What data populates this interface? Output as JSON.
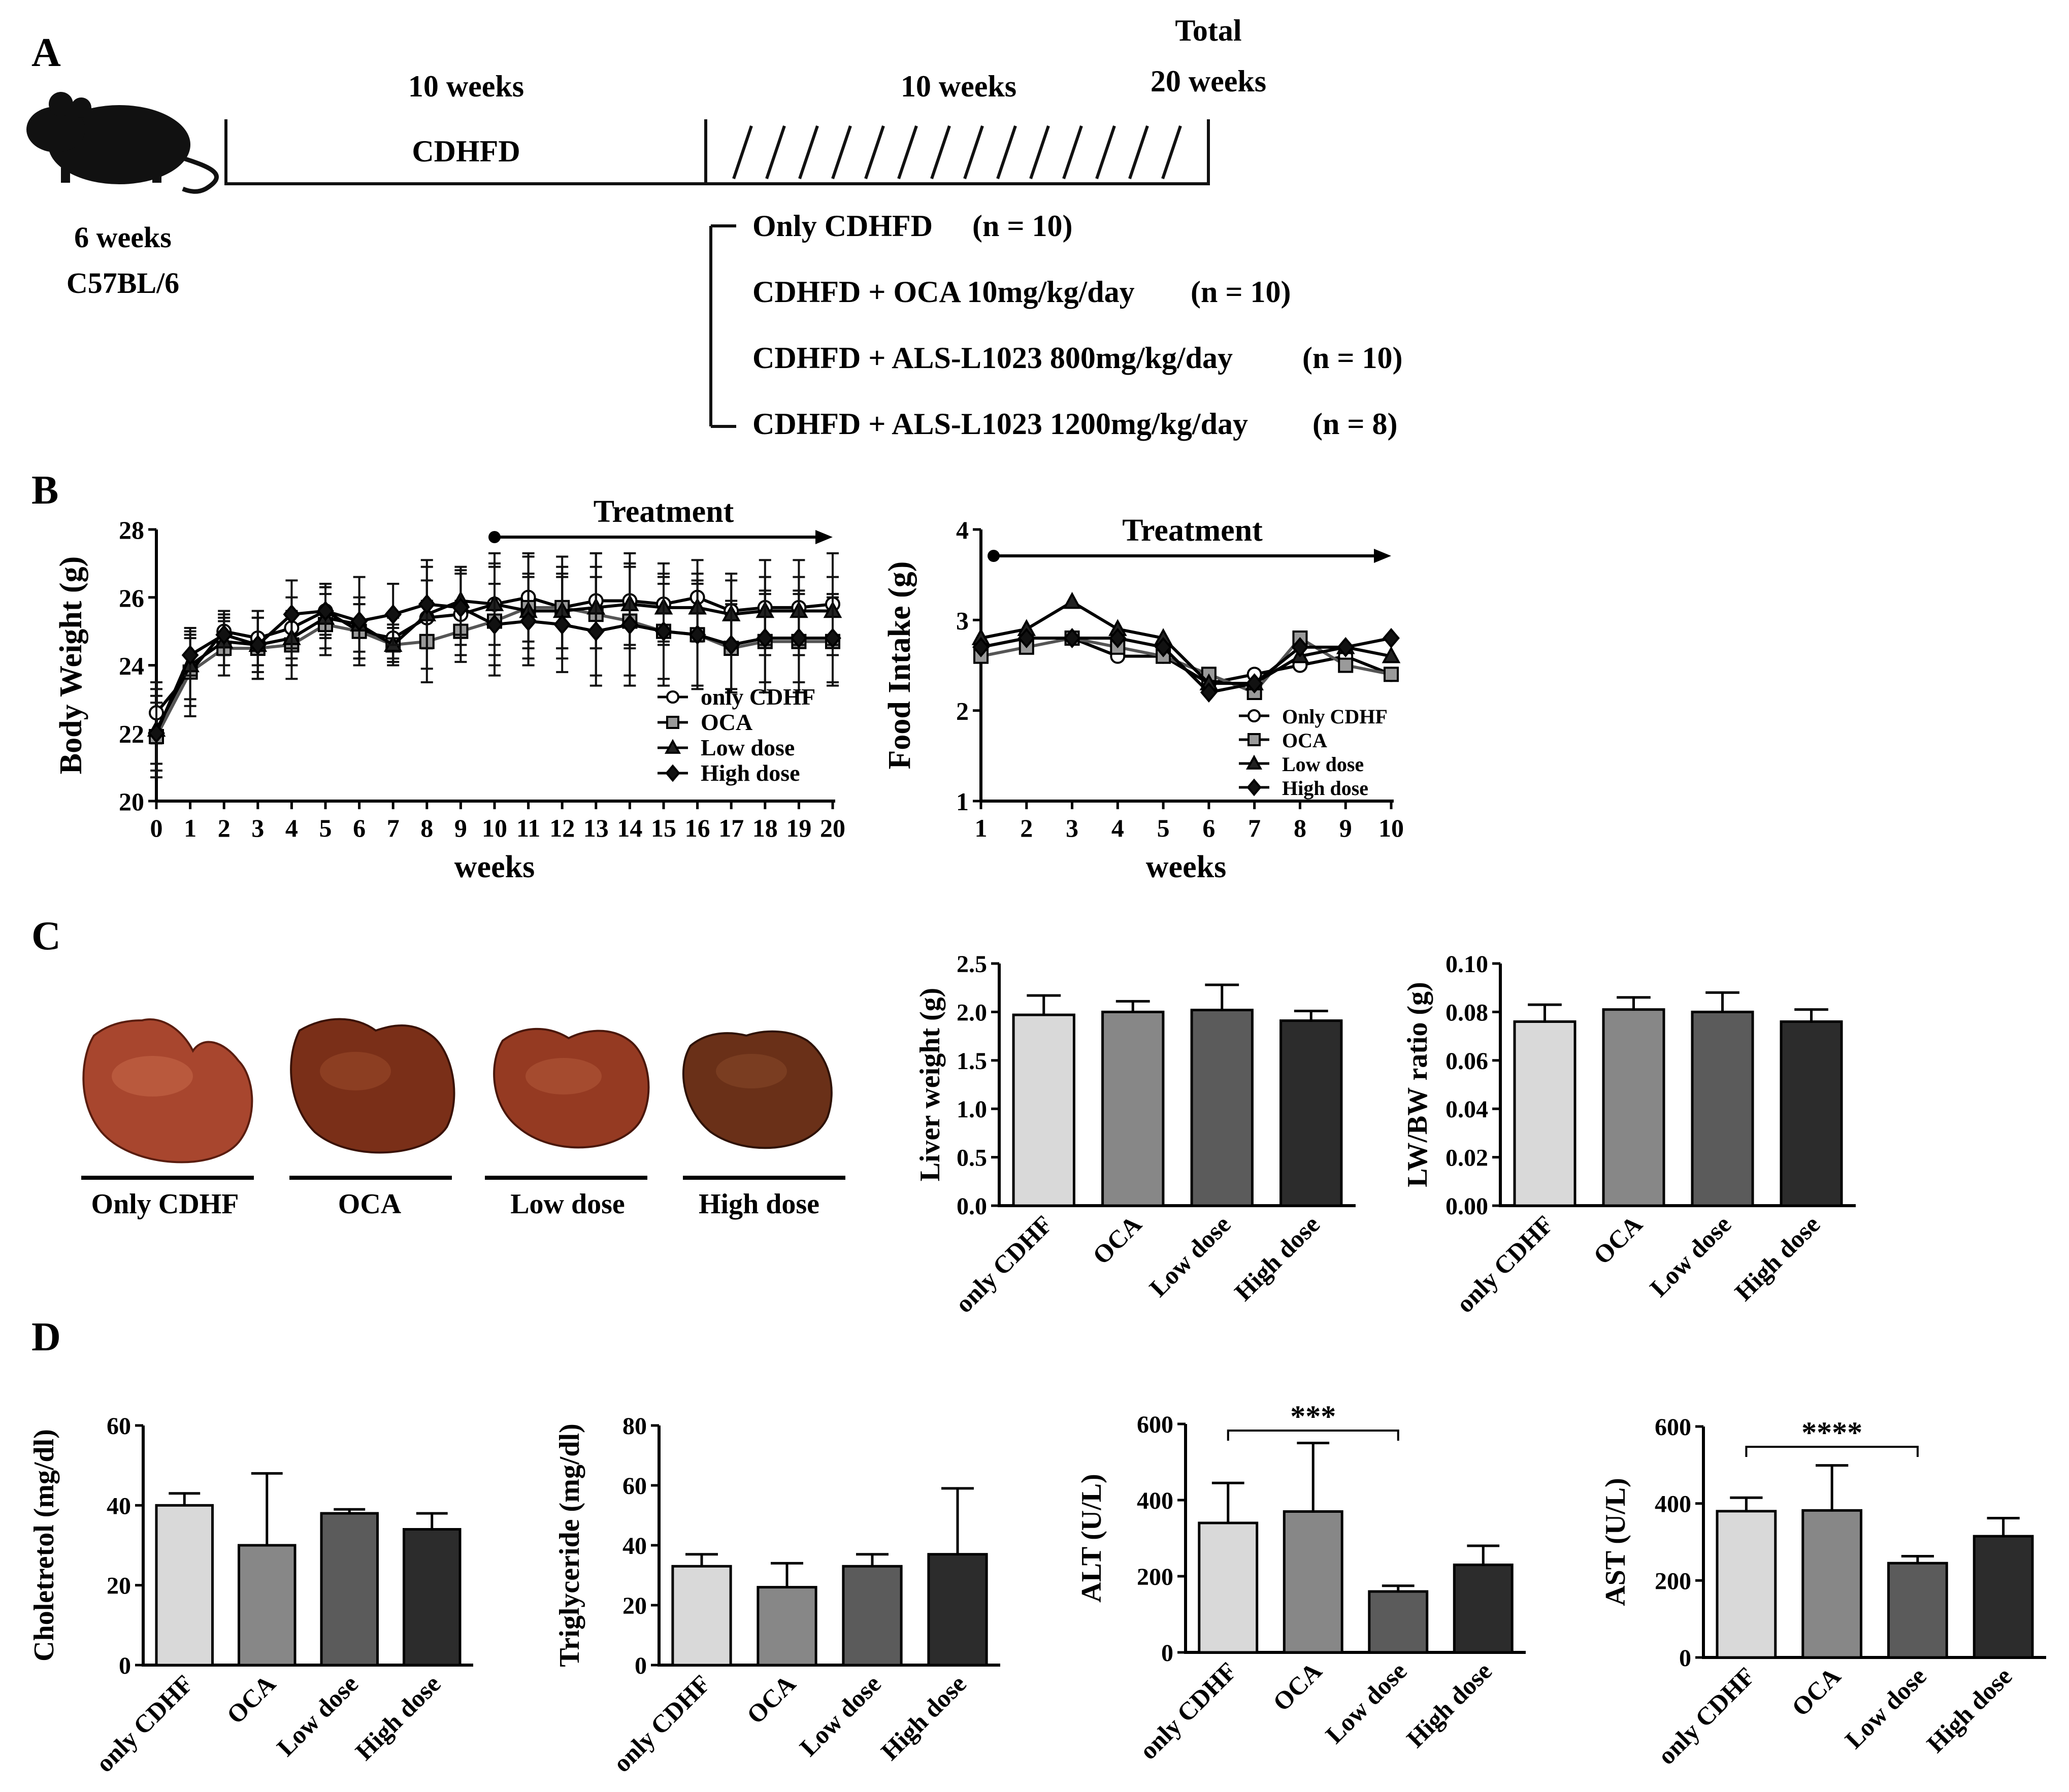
{
  "panel_labels": [
    "A",
    "B",
    "C",
    "D"
  ],
  "colors": {
    "only": "#d9d9d9",
    "oca": "#878787",
    "low": "#5b5b5b",
    "high": "#2c2c2c"
  },
  "panelA": {
    "period1": "10 weeks",
    "diet": "CDHFD",
    "period2": "10 weeks",
    "total_line1": "Total",
    "total_line2": "20 weeks",
    "mouse_age": "6 weeks",
    "mouse_strain": "C57BL/6",
    "groups": [
      {
        "label": "Only CDHFD",
        "n": "(n = 10)"
      },
      {
        "label": "CDHFD + OCA 10mg/kg/day",
        "n": "(n = 10)"
      },
      {
        "label": "CDHFD + ALS-L1023 800mg/kg/day",
        "n": "(n = 10)"
      },
      {
        "label": "CDHFD + ALS-L1023 1200mg/kg/day",
        "n": "(n = 8)"
      }
    ]
  },
  "panelC_images": {
    "labels": [
      "Only CDHF",
      "OCA",
      "Low dose",
      "High dose"
    ],
    "colors": [
      "#a8462e",
      "#7a2f18",
      "#953a22",
      "#6a3018"
    ]
  },
  "chart_data": [
    {
      "id": "body_weight",
      "type": "line",
      "title": "Treatment",
      "xlabel": "weeks",
      "ylabel": "Body Weight (g)",
      "x": [
        0,
        1,
        2,
        3,
        4,
        5,
        6,
        7,
        8,
        9,
        10,
        11,
        12,
        13,
        14,
        15,
        16,
        17,
        18,
        19,
        20
      ],
      "ylim": [
        20,
        28
      ],
      "yticks": [
        20,
        22,
        24,
        26,
        28
      ],
      "treatment_range": [
        10,
        20
      ],
      "legend": [
        "only CDHF",
        "OCA",
        "Low dose",
        "High dose"
      ],
      "series": [
        {
          "name": "only CDHF",
          "marker": "circle",
          "values": [
            22.6,
            23.8,
            25.0,
            24.8,
            25.1,
            25.6,
            25.0,
            24.8,
            25.4,
            25.5,
            25.8,
            26.0,
            25.7,
            25.9,
            25.9,
            25.8,
            26.0,
            25.6,
            25.7,
            25.7,
            25.8
          ],
          "err": [
            0.9,
            1.0,
            0.6,
            0.8,
            0.9,
            0.7,
            0.8,
            0.6,
            1.5,
            1.2,
            1.5,
            1.3,
            1.2,
            1.4,
            1.4,
            1.2,
            1.1,
            1.1,
            1.4,
            1.4,
            1.5
          ]
        },
        {
          "name": "OCA",
          "marker": "square",
          "values": [
            21.9,
            23.8,
            24.5,
            24.5,
            24.6,
            25.2,
            25.0,
            24.6,
            24.7,
            25.0,
            25.3,
            25.7,
            25.7,
            25.5,
            25.3,
            25.0,
            24.9,
            24.5,
            24.7,
            24.7,
            24.7
          ],
          "err": [
            1.0,
            1.3,
            0.8,
            0.9,
            1.0,
            0.9,
            0.8,
            0.5,
            1.2,
            0.9,
            1.6,
            1.5,
            1.5,
            1.8,
            1.6,
            1.6,
            1.6,
            1.3,
            1.5,
            1.5,
            1.3
          ]
        },
        {
          "name": "Low dose",
          "marker": "triangle",
          "values": [
            22.1,
            24.0,
            24.7,
            24.6,
            24.8,
            25.4,
            25.2,
            24.6,
            25.5,
            25.9,
            25.8,
            25.6,
            25.6,
            25.7,
            25.8,
            25.7,
            25.7,
            25.5,
            25.6,
            25.6,
            25.6
          ],
          "err": [
            1.0,
            1.0,
            0.7,
            0.8,
            0.8,
            0.9,
            0.8,
            0.6,
            1.0,
            1.0,
            1.2,
            1.1,
            1.1,
            1.2,
            1.2,
            1.0,
            1.0,
            1.0,
            1.0,
            1.0,
            1.0
          ]
        },
        {
          "name": "High dose",
          "marker": "diamond",
          "values": [
            22.0,
            24.3,
            24.9,
            24.6,
            25.5,
            25.6,
            25.3,
            25.5,
            25.8,
            25.7,
            25.2,
            25.3,
            25.2,
            25.0,
            25.2,
            25.0,
            24.9,
            24.6,
            24.8,
            24.8,
            24.8
          ],
          "err": [
            1.3,
            0.6,
            0.6,
            1.0,
            1.0,
            0.8,
            1.3,
            0.9,
            1.3,
            1.1,
            1.2,
            1.3,
            1.4,
            1.6,
            1.8,
            1.4,
            1.5,
            1.3,
            1.3,
            1.3,
            1.3
          ]
        }
      ]
    },
    {
      "id": "food_intake",
      "type": "line",
      "title": "Treatment",
      "xlabel": "weeks",
      "ylabel": "Food Intake (g)",
      "x": [
        1,
        2,
        3,
        4,
        5,
        6,
        7,
        8,
        9,
        10
      ],
      "ylim": [
        1,
        4
      ],
      "yticks": [
        1,
        2,
        3,
        4
      ],
      "treatment_range": [
        1,
        10
      ],
      "legend": [
        "Only CDHF",
        "OCA",
        "Low dose",
        "High dose"
      ],
      "series": [
        {
          "name": "Only CDHF",
          "marker": "circle",
          "values": [
            2.7,
            2.8,
            2.8,
            2.6,
            2.6,
            2.3,
            2.4,
            2.5,
            2.6,
            2.4
          ]
        },
        {
          "name": "OCA",
          "marker": "square",
          "values": [
            2.6,
            2.7,
            2.8,
            2.7,
            2.6,
            2.4,
            2.2,
            2.8,
            2.5,
            2.4
          ]
        },
        {
          "name": "Low dose",
          "marker": "triangle",
          "values": [
            2.8,
            2.9,
            3.2,
            2.9,
            2.8,
            2.3,
            2.3,
            2.6,
            2.7,
            2.6
          ]
        },
        {
          "name": "High dose",
          "marker": "diamond",
          "values": [
            2.7,
            2.8,
            2.8,
            2.8,
            2.7,
            2.2,
            2.3,
            2.7,
            2.7,
            2.8
          ]
        }
      ]
    },
    {
      "id": "liver_weight",
      "type": "bar",
      "ylabel": "Liver weight (g)",
      "categories": [
        "only CDHF",
        "OCA",
        "Low dose",
        "High dose"
      ],
      "values": [
        1.97,
        2.0,
        2.02,
        1.91
      ],
      "err": [
        0.2,
        0.11,
        0.26,
        0.1
      ],
      "ylim": [
        0,
        2.5
      ],
      "yticks": [
        "0.0",
        "0.5",
        "1.0",
        "1.5",
        "2.0",
        "2.5"
      ]
    },
    {
      "id": "lw_bw_ratio",
      "type": "bar",
      "ylabel": "LW/BW ratio (g)",
      "categories": [
        "only CDHF",
        "OCA",
        "Low dose",
        "High dose"
      ],
      "values": [
        0.076,
        0.081,
        0.08,
        0.076
      ],
      "err": [
        0.007,
        0.005,
        0.008,
        0.005
      ],
      "ylim": [
        0,
        0.1
      ],
      "yticks": [
        "0.00",
        "0.02",
        "0.04",
        "0.06",
        "0.08",
        "0.10"
      ]
    },
    {
      "id": "cholesterol",
      "type": "bar",
      "ylabel": "Choletretol (mg/dl)",
      "categories": [
        "only CDHF",
        "OCA",
        "Low dose",
        "High dose"
      ],
      "values": [
        40,
        30,
        38,
        34
      ],
      "err": [
        3,
        18,
        1,
        4
      ],
      "ylim": [
        0,
        60
      ],
      "yticks": [
        "0",
        "20",
        "40",
        "60"
      ]
    },
    {
      "id": "triglyceride",
      "type": "bar",
      "ylabel": "Triglyceride (mg/dl)",
      "categories": [
        "only CDHF",
        "OCA",
        "Low dose",
        "High dose"
      ],
      "values": [
        33,
        26,
        33,
        37
      ],
      "err": [
        4,
        8,
        4,
        22
      ],
      "ylim": [
        0,
        80
      ],
      "yticks": [
        "0",
        "20",
        "40",
        "60",
        "80"
      ]
    },
    {
      "id": "alt",
      "type": "bar",
      "ylabel": "ALT (U/L)",
      "categories": [
        "only CDHF",
        "OCA",
        "Low dose",
        "High dose"
      ],
      "values": [
        340,
        370,
        160,
        230
      ],
      "err": [
        105,
        180,
        15,
        50
      ],
      "ylim": [
        0,
        600
      ],
      "yticks": [
        "0",
        "200",
        "400",
        "600"
      ],
      "significance": {
        "from": 0,
        "to": 2,
        "label": "***"
      }
    },
    {
      "id": "ast",
      "type": "bar",
      "ylabel": "AST (U/L)",
      "categories": [
        "only CDHF",
        "OCA",
        "Low dose",
        "High dose"
      ],
      "values": [
        380,
        382,
        245,
        315
      ],
      "err": [
        35,
        117,
        18,
        47
      ],
      "ylim": [
        0,
        600
      ],
      "yticks": [
        "0",
        "200",
        "400",
        "600"
      ],
      "significance": {
        "from": 0,
        "to": 2,
        "label": "****"
      }
    }
  ]
}
